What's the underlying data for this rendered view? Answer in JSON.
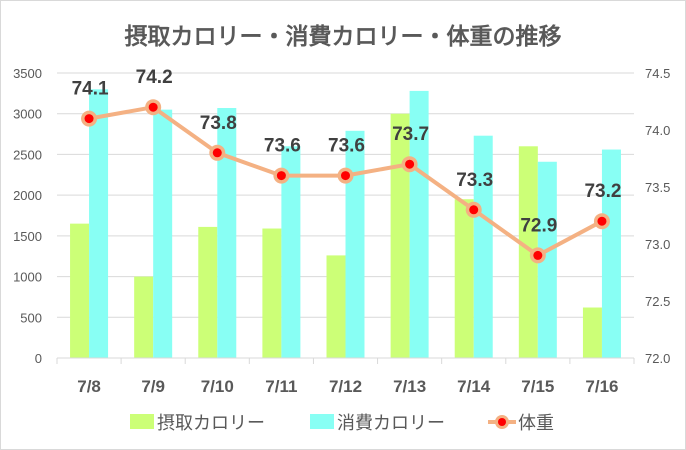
{
  "chart_data": {
    "type": "bar+line",
    "title": "摂取カロリー・消費カロリー・体重の推移",
    "categories": [
      "7/8",
      "7/9",
      "7/10",
      "7/11",
      "7/12",
      "7/13",
      "7/14",
      "7/15",
      "7/16"
    ],
    "y_left": {
      "min": 0,
      "max": 3500,
      "step": 500,
      "ticks": [
        "0",
        "500",
        "1000",
        "1500",
        "2000",
        "2500",
        "3000",
        "3500"
      ]
    },
    "y_right": {
      "min": 72.0,
      "max": 74.5,
      "step": 0.5,
      "ticks": [
        "72.0",
        "72.5",
        "73.0",
        "73.5",
        "74.0",
        "74.5"
      ]
    },
    "grid": true,
    "legend_position": "bottom",
    "series": [
      {
        "name": "摂取カロリー",
        "type": "bar",
        "axis": "left",
        "color": "#ccff77",
        "values": [
          1650,
          1000,
          1610,
          1590,
          1260,
          3000,
          1950,
          2600,
          620
        ]
      },
      {
        "name": "消費カロリー",
        "type": "bar",
        "axis": "left",
        "color": "#88fff4",
        "values": [
          3300,
          3050,
          3070,
          2600,
          2790,
          3280,
          2730,
          2410,
          2560
        ]
      },
      {
        "name": "体重",
        "type": "line",
        "axis": "right",
        "color": "#f4b183",
        "marker_color": "#ff0000",
        "values": [
          74.1,
          74.2,
          73.8,
          73.6,
          73.6,
          73.7,
          73.3,
          72.9,
          73.2
        ],
        "labels": [
          "74.1",
          "74.2",
          "73.8",
          "73.6",
          "73.6",
          "73.7",
          "73.3",
          "72.9",
          "73.2"
        ]
      }
    ]
  }
}
